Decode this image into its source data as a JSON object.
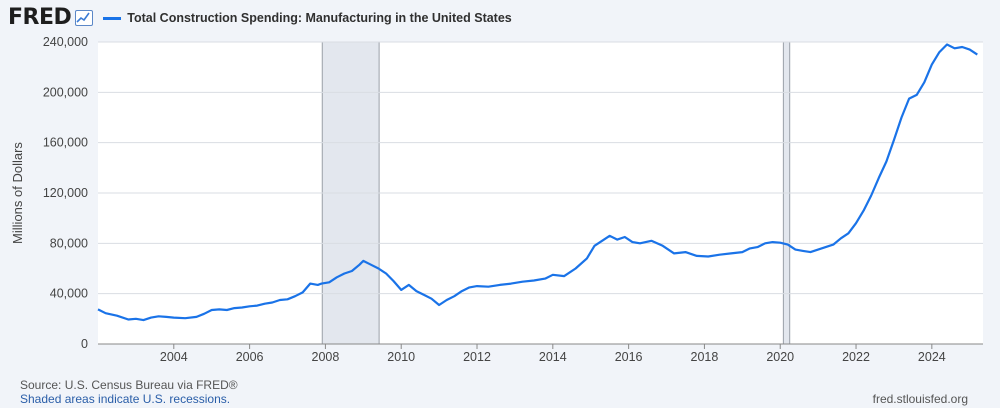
{
  "header": {
    "logo_text": "FRED",
    "series_title": "Total Construction Spending: Manufacturing in the United States"
  },
  "footer": {
    "source": "Source: U.S. Census Bureau via FRED®",
    "note": "Shaded areas indicate U.S. recessions.",
    "site": "fred.stlouisfed.org"
  },
  "colors": {
    "line": "#1a73e8",
    "recession": "#e3e7ee",
    "grid": "#d9dde3",
    "axis": "#444444"
  },
  "chart_data": {
    "type": "line",
    "title": "Total Construction Spending: Manufacturing in the United States",
    "ylabel": "Millions of Dollars",
    "xlabel": "",
    "ylim": [
      0,
      240000
    ],
    "xlim": [
      2002.0,
      2025.35
    ],
    "yticks": [
      0,
      40000,
      80000,
      120000,
      160000,
      200000,
      240000
    ],
    "ytick_labels": [
      "0",
      "40,000",
      "80,000",
      "120,000",
      "160,000",
      "200,000",
      "240,000"
    ],
    "xticks": [
      2004,
      2006,
      2008,
      2010,
      2012,
      2014,
      2016,
      2018,
      2020,
      2022,
      2024
    ],
    "xtick_labels": [
      "2004",
      "2006",
      "2008",
      "2010",
      "2012",
      "2014",
      "2016",
      "2018",
      "2020",
      "2022",
      "2024"
    ],
    "grid": "horizontal",
    "recessions": [
      [
        2007.917,
        2009.417
      ],
      [
        2020.083,
        2020.25
      ]
    ],
    "series": [
      {
        "name": "Total Construction Spending: Manufacturing in the United States",
        "x": [
          2002.0,
          2002.2,
          2002.5,
          2002.8,
          2003.0,
          2003.2,
          2003.4,
          2003.6,
          2003.8,
          2004.0,
          2004.3,
          2004.6,
          2004.8,
          2005.0,
          2005.2,
          2005.4,
          2005.6,
          2005.8,
          2006.0,
          2006.2,
          2006.4,
          2006.6,
          2006.8,
          2007.0,
          2007.2,
          2007.4,
          2007.6,
          2007.8,
          2007.9,
          2008.1,
          2008.3,
          2008.5,
          2008.7,
          2008.9,
          2009.0,
          2009.2,
          2009.4,
          2009.6,
          2009.8,
          2010.0,
          2010.2,
          2010.4,
          2010.6,
          2010.8,
          2011.0,
          2011.2,
          2011.4,
          2011.6,
          2011.8,
          2012.0,
          2012.3,
          2012.6,
          2012.9,
          2013.2,
          2013.5,
          2013.8,
          2014.0,
          2014.3,
          2014.6,
          2014.9,
          2015.1,
          2015.3,
          2015.5,
          2015.7,
          2015.9,
          2016.1,
          2016.3,
          2016.6,
          2016.9,
          2017.2,
          2017.5,
          2017.8,
          2018.1,
          2018.4,
          2018.7,
          2019.0,
          2019.2,
          2019.4,
          2019.6,
          2019.8,
          2020.0,
          2020.2,
          2020.4,
          2020.6,
          2020.8,
          2021.0,
          2021.2,
          2021.4,
          2021.6,
          2021.8,
          2022.0,
          2022.2,
          2022.4,
          2022.6,
          2022.8,
          2023.0,
          2023.2,
          2023.4,
          2023.6,
          2023.8,
          2024.0,
          2024.2,
          2024.4,
          2024.6,
          2024.8,
          2025.0,
          2025.2
        ],
        "values": [
          27500,
          24500,
          22500,
          19500,
          20000,
          19000,
          21000,
          22000,
          21500,
          21000,
          20500,
          21500,
          24000,
          27000,
          27500,
          27000,
          28500,
          29000,
          30000,
          30500,
          32000,
          33000,
          35000,
          35500,
          38000,
          41000,
          48000,
          47000,
          48000,
          49000,
          53000,
          56000,
          58000,
          63000,
          66000,
          63000,
          60000,
          56000,
          50000,
          43000,
          47000,
          42000,
          39000,
          36000,
          31000,
          35000,
          38000,
          42000,
          45000,
          46000,
          45500,
          47000,
          48000,
          49500,
          50500,
          52000,
          55000,
          54000,
          60000,
          68000,
          78000,
          82000,
          86000,
          83000,
          85000,
          81000,
          80000,
          82000,
          78000,
          72000,
          73000,
          70000,
          69500,
          71000,
          72000,
          73000,
          76000,
          77000,
          80000,
          81000,
          80500,
          79000,
          75000,
          74000,
          73000,
          75000,
          77000,
          79000,
          84000,
          88000,
          96000,
          106000,
          118000,
          132000,
          145000,
          162000,
          180000,
          195000,
          198000,
          208000,
          222000,
          232000,
          238000,
          235000,
          236000,
          234000,
          230000
        ]
      }
    ]
  }
}
